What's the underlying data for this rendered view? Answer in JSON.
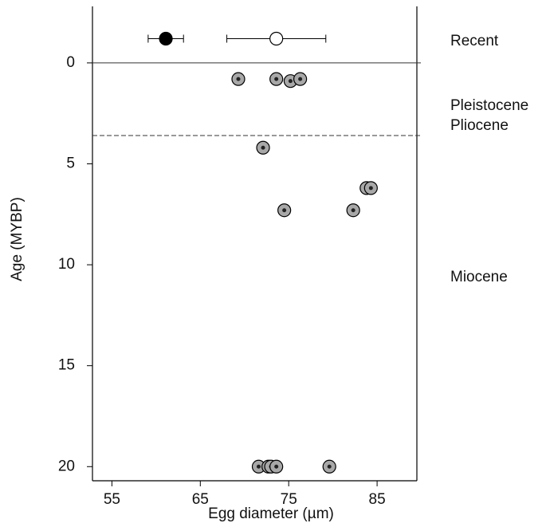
{
  "chart_data": {
    "type": "scatter",
    "x_label": "Egg diameter (µm)",
    "y_label": "Age (MYBP)",
    "xlim": [
      52.8,
      89.5
    ],
    "ylim": [
      20.7,
      -2.8
    ],
    "y_inverted": true,
    "xticks": [
      55,
      65,
      75,
      85
    ],
    "yticks": [
      0,
      5,
      10,
      15,
      20
    ],
    "series": [
      {
        "color": "#000000",
        "x": [
          61.1
        ],
        "values": [
          -1.2
        ],
        "xerr": [
          2.0
        ]
      },
      {
        "color": "#ffffff",
        "x": [
          73.6
        ],
        "values": [
          -1.2
        ],
        "xerr": [
          5.6
        ]
      },
      {
        "color": "#a8a8a8",
        "x": [
          69.3,
          73.6,
          75.2,
          76.3,
          72.1,
          83.8,
          84.3,
          74.5,
          82.3,
          71.6,
          72.7,
          73.0,
          73.6,
          79.6
        ],
        "values": [
          0.8,
          0.8,
          0.9,
          0.8,
          4.2,
          6.2,
          6.2,
          7.3,
          7.3,
          20.0,
          20.0,
          20.0,
          20.0,
          20.0
        ]
      }
    ],
    "hlines": [
      {
        "value": 0,
        "style": "solid"
      },
      {
        "value": 3.6,
        "style": "dashed"
      }
    ],
    "annotations": [
      "Recent",
      "Pleistocene",
      "Pliocene",
      "Miocene"
    ]
  }
}
